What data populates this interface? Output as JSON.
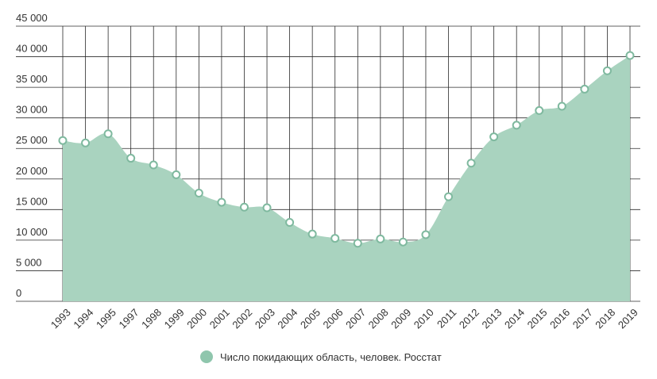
{
  "chart_data": {
    "type": "area",
    "x": [
      "1993",
      "1994",
      "1995",
      "1997",
      "1998",
      "1999",
      "2000",
      "2001",
      "2002",
      "2003",
      "2004",
      "2005",
      "2006",
      "2007",
      "2008",
      "2009",
      "2010",
      "2011",
      "2012",
      "2013",
      "2014",
      "2015",
      "2016",
      "2017",
      "2018",
      "2019"
    ],
    "series": [
      {
        "name": "Число покидающих область, человек. Росстат",
        "values": [
          26300,
          25900,
          27400,
          23400,
          22300,
          20700,
          17700,
          16200,
          15400,
          15300,
          12900,
          11000,
          10300,
          9500,
          10200,
          9700,
          10900,
          17100,
          22600,
          26900,
          28800,
          31200,
          31900,
          34700,
          37700,
          40200
        ]
      }
    ],
    "y_ticks": [
      "0",
      "5 000",
      "10 000",
      "15 000",
      "20 000",
      "25 000",
      "30 000",
      "35 000",
      "40 000",
      "45 000"
    ],
    "ylim": [
      0,
      45000
    ],
    "grid": true,
    "legend_position": "bottom",
    "colors": {
      "area_fill": "#a9d3bf",
      "marker_fill": "#ffffff",
      "marker_stroke": "#7fb99f",
      "legend_swatch": "#8fc6ad",
      "grid": "#2b2b2b"
    }
  }
}
